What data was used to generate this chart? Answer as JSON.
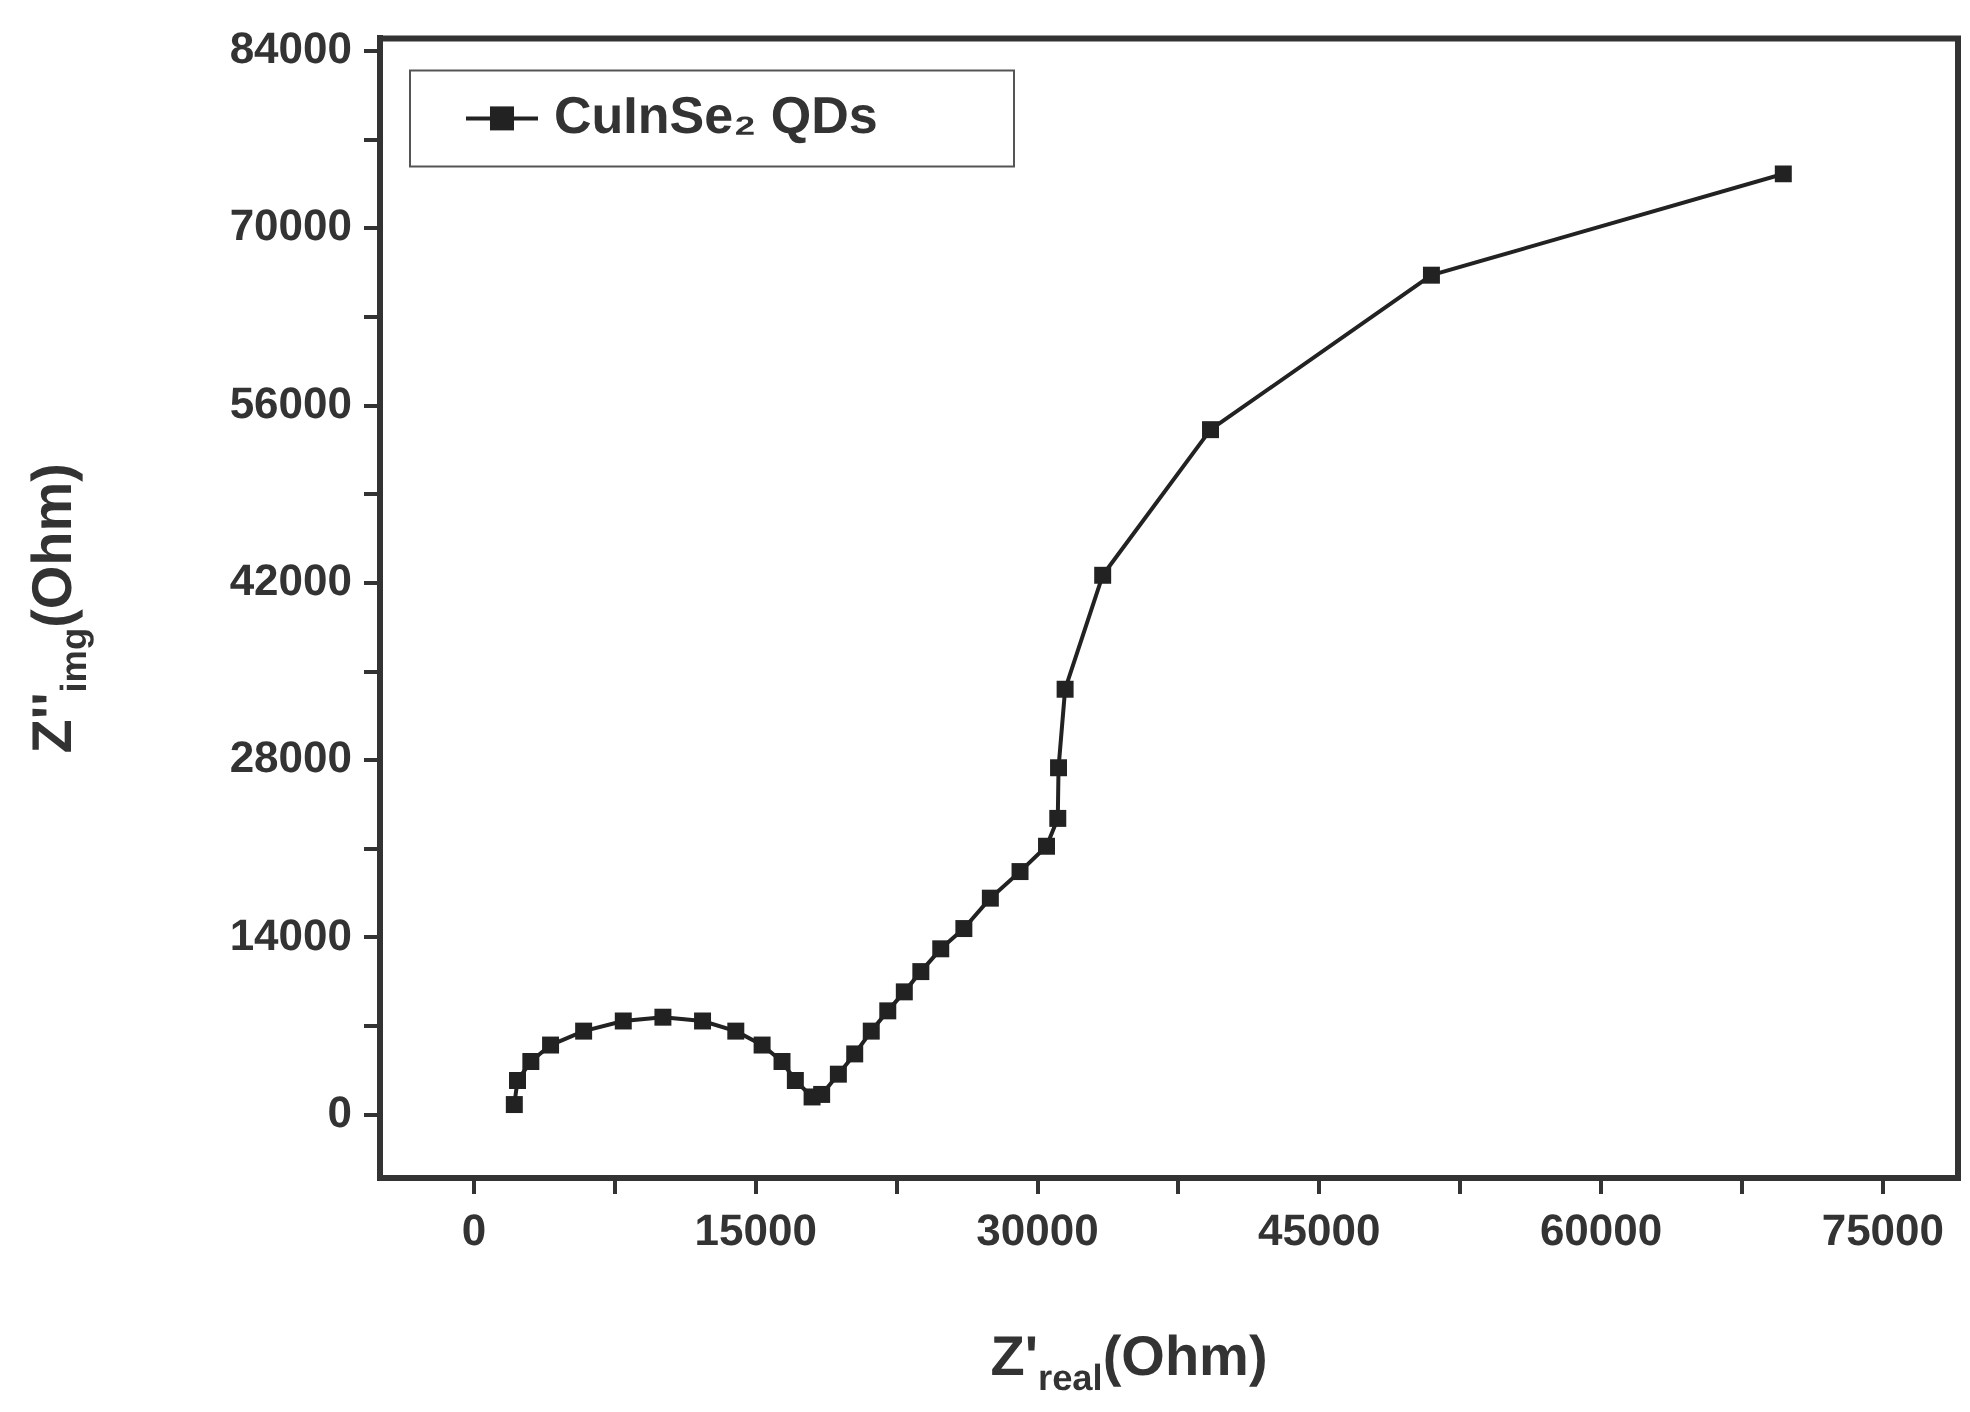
{
  "chart_data": {
    "type": "line",
    "xlabel": "Z'$_{real}$(Ohm)",
    "ylabel": "Z''$_{img}$(Ohm)",
    "xlim": [
      -5000,
      79000
    ],
    "ylim": [
      -5000,
      85000
    ],
    "xticks": [
      0,
      {
        "value": 7500,
        "label": null
      },
      15000,
      {
        "value": 22500,
        "label": null
      },
      30000,
      {
        "value": 37500,
        "label": null
      },
      45000,
      {
        "value": 52500,
        "label": null
      },
      60000,
      {
        "value": 67500,
        "label": null
      },
      75000
    ],
    "yticks": [
      0,
      {
        "value": 7000,
        "label": null
      },
      14000,
      {
        "value": 21000,
        "label": null
      },
      28000,
      {
        "value": 35000,
        "label": null
      },
      42000,
      {
        "value": 49000,
        "label": null
      },
      56000,
      {
        "value": 63000,
        "label": null
      },
      70000,
      {
        "value": 77000,
        "label": null
      },
      84000
    ],
    "grid": false,
    "legend": "top left",
    "marker": "square",
    "line_style": "solid",
    "series": [
      {
        "name": "CuInSe₂ QDs",
        "color": "#222222",
        "x": [
          2150,
          2320,
          3030,
          4080,
          5840,
          7950,
          10060,
          12170,
          13940,
          15340,
          16400,
          17110,
          18000,
          18510,
          19400,
          20270,
          21150,
          22030,
          22910,
          23790,
          24850,
          26080,
          27490,
          29070,
          30480,
          31080,
          31120,
          31470,
          33470,
          39210,
          50970,
          69700
        ],
        "values": [
          800,
          2700,
          4200,
          5500,
          6600,
          7400,
          7700,
          7400,
          6600,
          5500,
          4200,
          2700,
          1400,
          1600,
          3200,
          4800,
          6600,
          8200,
          9700,
          11300,
          13100,
          14700,
          17100,
          19200,
          21200,
          23400,
          27400,
          33600,
          42600,
          54100,
          66300,
          74300
        ]
      }
    ]
  }
}
